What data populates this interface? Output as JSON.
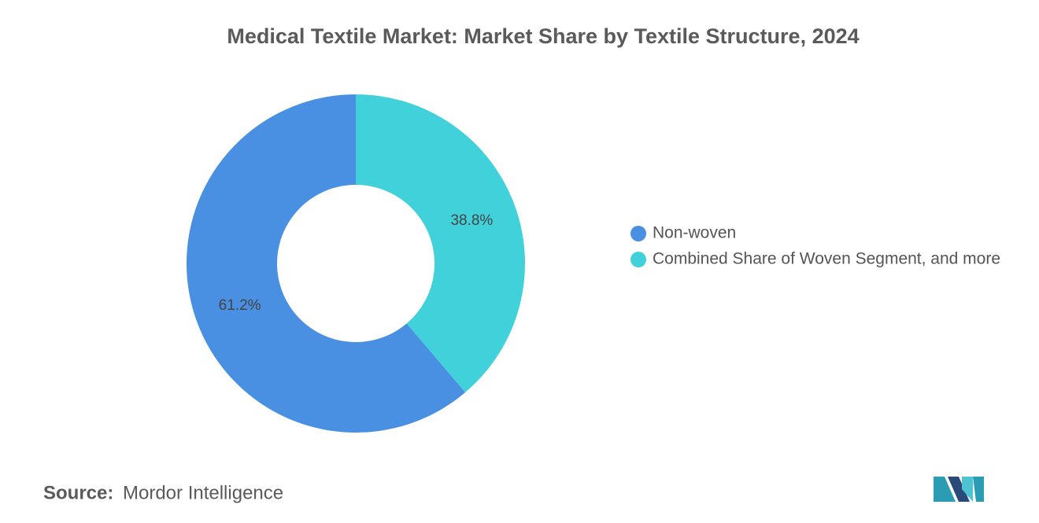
{
  "chart_data": {
    "type": "donut",
    "title": "Medical Textile Market: Market Share by Textile Structure, 2024",
    "categories": [
      "Non-woven",
      "Combined Share of Woven Segment, and more"
    ],
    "values": [
      61.2,
      38.8
    ],
    "value_labels": [
      "61.2%",
      "38.8%"
    ],
    "colors": [
      "#4a90e2",
      "#41d1da"
    ],
    "legend": "right"
  },
  "source": {
    "label": "Source:",
    "text": "Mordor Intelligence"
  }
}
